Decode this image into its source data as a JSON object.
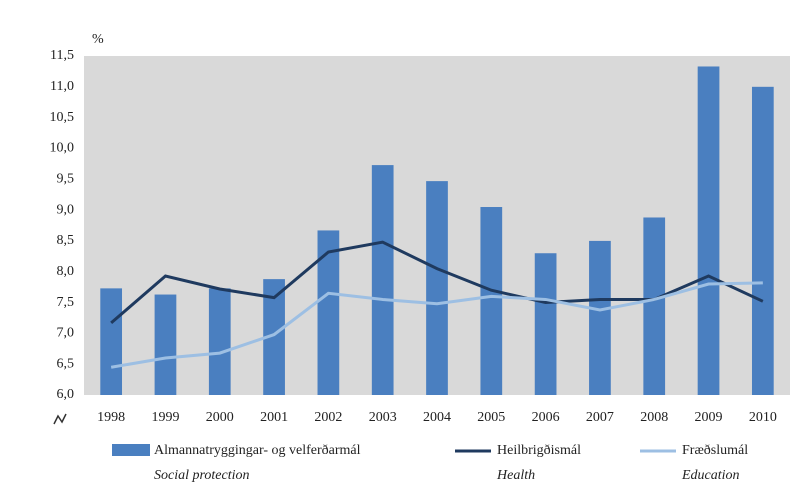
{
  "chart_data": {
    "type": "bar-line",
    "y_unit": "%",
    "categories": [
      "1998",
      "1999",
      "2000",
      "2001",
      "2002",
      "2003",
      "2004",
      "2005",
      "2006",
      "2007",
      "2008",
      "2009",
      "2010"
    ],
    "series": [
      {
        "name": "Almannatryggingar- og velferðarmál",
        "name_en": "Social protection",
        "kind": "bar",
        "color": "#4a7fc0",
        "values": [
          7.73,
          7.63,
          7.73,
          7.88,
          8.67,
          9.73,
          9.47,
          9.05,
          8.3,
          8.5,
          8.88,
          11.33,
          11.0
        ]
      },
      {
        "name": "Heilbrigðismál",
        "name_en": "Health",
        "kind": "line",
        "color": "#1f3a5f",
        "values": [
          7.17,
          7.93,
          7.72,
          7.58,
          8.32,
          8.48,
          8.05,
          7.7,
          7.5,
          7.55,
          7.55,
          7.93,
          7.52
        ]
      },
      {
        "name": "Fræðslumál",
        "name_en": "Education",
        "kind": "line",
        "color": "#9dbfe3",
        "values": [
          6.45,
          6.6,
          6.68,
          6.98,
          7.65,
          7.55,
          7.48,
          7.6,
          7.55,
          7.38,
          7.55,
          7.8,
          7.82
        ]
      }
    ],
    "ylim": [
      6,
      11.5
    ],
    "yticks": [
      {
        "value": 6,
        "label": "6,0"
      },
      {
        "value": 6.5,
        "label": "6,5"
      },
      {
        "value": 7,
        "label": "7,0"
      },
      {
        "value": 7.5,
        "label": "7,5"
      },
      {
        "value": 8,
        "label": "8,0"
      },
      {
        "value": 8.5,
        "label": "8,5"
      },
      {
        "value": 9,
        "label": "9,0"
      },
      {
        "value": 9.5,
        "label": "9,5"
      },
      {
        "value": 10,
        "label": "10,0"
      },
      {
        "value": 10.5,
        "label": "10,5"
      },
      {
        "value": 11,
        "label": "11,0"
      },
      {
        "value": 11.5,
        "label": "11,5"
      }
    ],
    "grid": false,
    "legend": "bottom"
  }
}
